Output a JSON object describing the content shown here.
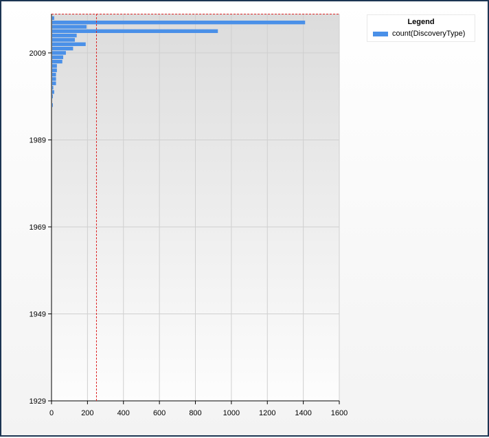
{
  "chart_data": {
    "type": "bar",
    "orientation": "horizontal",
    "title": "",
    "xlabel": "",
    "ylabel": "",
    "xlim": [
      0,
      1600
    ],
    "ylim": [
      1929,
      2018
    ],
    "x_ticks": [
      0,
      200,
      400,
      600,
      800,
      1000,
      1200,
      1400,
      1600
    ],
    "y_ticks": [
      1929,
      1949,
      1969,
      1989,
      2009
    ],
    "grid": true,
    "reference_line_x": 250,
    "legend": {
      "title": "Legend",
      "position": "top-right"
    },
    "series": [
      {
        "name": "count(DiscoveryType)",
        "color": "#4a90e8",
        "y": [
          2017,
          2016,
          2015,
          2014,
          2013,
          2012,
          2011,
          2010,
          2009,
          2008,
          2007,
          2006,
          2005,
          2004,
          2003,
          2002,
          2001,
          2000,
          1999,
          1997
        ],
        "values": [
          15,
          1410,
          195,
          925,
          140,
          130,
          190,
          120,
          80,
          65,
          60,
          30,
          30,
          25,
          25,
          25,
          10,
          15,
          5,
          3
        ]
      }
    ]
  }
}
